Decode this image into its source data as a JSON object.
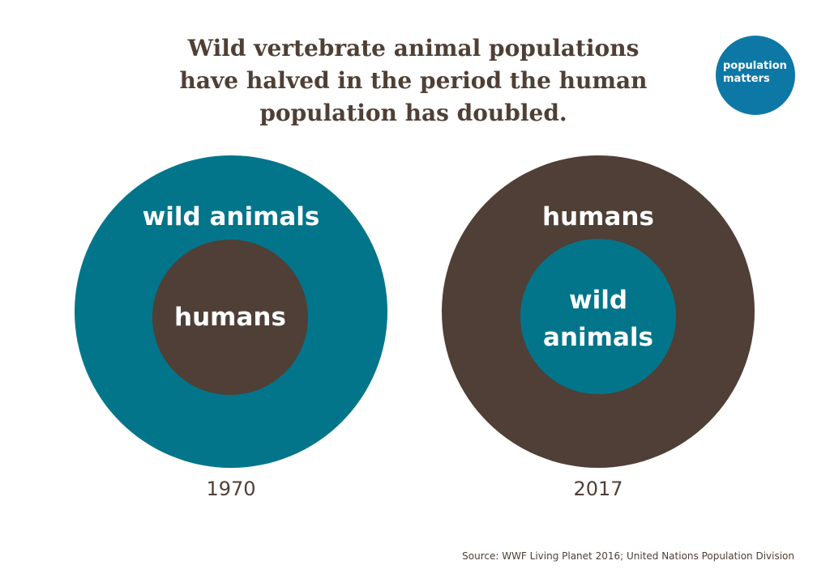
{
  "title": {
    "line1": "Wild vertebrate animal populations",
    "line2": "have halved in the period the human",
    "line3": "population has doubled."
  },
  "logo": {
    "line1": "population",
    "line2": "matters",
    "color": "#0d78a6"
  },
  "diagram_1970": {
    "outer_label": "wild animals",
    "inner_label": "humans",
    "year": "1970",
    "outer_color": "#02758b",
    "inner_color": "#4f3f36"
  },
  "diagram_2017": {
    "outer_label": "humans",
    "inner_label_line1": "wild",
    "inner_label_line2": "animals",
    "year": "2017",
    "outer_color": "#4f3f36",
    "inner_color": "#02758b"
  },
  "source": "Source: WWF Living Planet 2016; United Nations Population Division"
}
